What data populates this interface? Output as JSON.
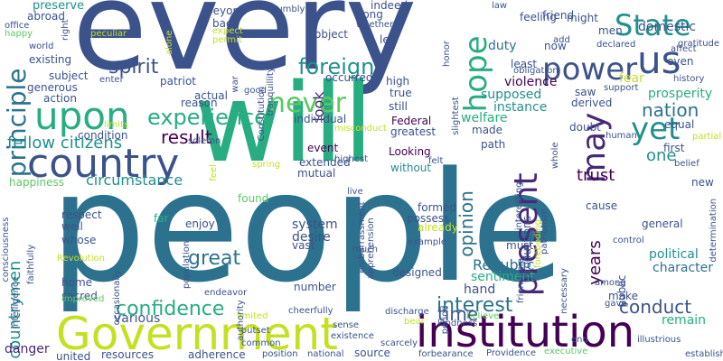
{
  "palette": {
    "c0": "#440154",
    "c1": "#3b528b",
    "c2": "#21908d",
    "c3": "#5dc963",
    "c4": "#c5e021",
    "c5": "#482878",
    "c6": "#2c728e",
    "c7": "#27ad81",
    "c8": "#fde725"
  },
  "words": [
    {
      "t": "every",
      "c": "c1"
    },
    {
      "t": "people",
      "c": "c6"
    },
    {
      "t": "will",
      "c": "c7"
    },
    {
      "t": "Government",
      "c": "c4"
    },
    {
      "t": "institution",
      "c": "c0"
    },
    {
      "t": "country",
      "c": "c1"
    },
    {
      "t": "upon",
      "c": "c7"
    },
    {
      "t": "us",
      "c": "c1"
    },
    {
      "t": "State",
      "c": "c2"
    },
    {
      "t": "power",
      "c": "c1"
    },
    {
      "t": "may",
      "c": "c5"
    },
    {
      "t": "hope",
      "c": "c7"
    },
    {
      "t": "present",
      "c": "c5"
    },
    {
      "t": "never",
      "c": "c3"
    },
    {
      "t": "principle",
      "c": "c6"
    },
    {
      "t": "experience",
      "c": "c7"
    },
    {
      "t": "foreign",
      "c": "c2"
    },
    {
      "t": "spirit",
      "c": "c1"
    },
    {
      "t": "yet",
      "c": "c2"
    },
    {
      "t": "nation",
      "c": "c6"
    },
    {
      "t": "confidence",
      "c": "c7"
    },
    {
      "t": "interest",
      "c": "c6"
    },
    {
      "t": "conduct",
      "c": "c1"
    },
    {
      "t": "great",
      "c": "c6"
    },
    {
      "t": "result",
      "c": "c0"
    },
    {
      "t": "opinion",
      "c": "c6"
    },
    {
      "t": "time",
      "c": "c1"
    },
    {
      "t": "trust",
      "c": "c0"
    },
    {
      "t": "countrymen",
      "c": "c2"
    },
    {
      "t": "fellow citizens",
      "c": "c2"
    },
    {
      "t": "one",
      "c": "c2"
    },
    {
      "t": "look",
      "c": "c5"
    },
    {
      "t": "circumstance",
      "c": "c2"
    },
    {
      "t": "years",
      "c": "c0"
    },
    {
      "t": "Republic",
      "c": "c6"
    },
    {
      "t": "political",
      "c": "c2"
    },
    {
      "t": "character",
      "c": "c6"
    },
    {
      "t": "duty",
      "c": "c6"
    },
    {
      "t": "fear",
      "c": "c4"
    },
    {
      "t": "violence",
      "c": "c0"
    },
    {
      "t": "supposed",
      "c": "c2"
    },
    {
      "t": "instance",
      "c": "c2"
    },
    {
      "t": "welfare",
      "c": "c7"
    },
    {
      "t": "prosperity",
      "c": "c7"
    },
    {
      "t": "domestic",
      "c": "c1"
    },
    {
      "t": "desire",
      "c": "c1"
    },
    {
      "t": "system",
      "c": "c1"
    },
    {
      "t": "various",
      "c": "c1"
    },
    {
      "t": "happiness",
      "c": "c3"
    },
    {
      "t": "hand",
      "c": "c1"
    },
    {
      "t": "sentiment",
      "c": "c7"
    },
    {
      "t": "remain",
      "c": "c7"
    },
    {
      "t": "danger",
      "c": "c5"
    },
    {
      "t": "resources",
      "c": "c1"
    },
    {
      "t": "adherence",
      "c": "c1"
    },
    {
      "t": "source",
      "c": "c1"
    },
    {
      "t": "united",
      "c": "c1"
    },
    {
      "t": "subject",
      "c": "c1"
    },
    {
      "t": "action",
      "c": "c1"
    },
    {
      "t": "patriot",
      "c": "c1"
    },
    {
      "t": "actual",
      "c": "c1"
    },
    {
      "t": "condition",
      "c": "c1"
    },
    {
      "t": "generous",
      "c": "c1"
    },
    {
      "t": "individual",
      "c": "c1"
    },
    {
      "t": "Federal",
      "c": "c0"
    },
    {
      "t": "greatest",
      "c": "c1"
    },
    {
      "t": "event",
      "c": "c0"
    },
    {
      "t": "extended",
      "c": "c1"
    },
    {
      "t": "mutual",
      "c": "c1"
    },
    {
      "t": "Looking",
      "c": "c0"
    },
    {
      "t": "without",
      "c": "c2"
    },
    {
      "t": "made",
      "c": "c1"
    },
    {
      "t": "path",
      "c": "c1"
    },
    {
      "t": "formed",
      "c": "c1"
    },
    {
      "t": "possess",
      "c": "c1"
    },
    {
      "t": "must",
      "c": "c1"
    },
    {
      "t": "found",
      "c": "c3"
    },
    {
      "t": "enjoy",
      "c": "c1"
    },
    {
      "t": "far",
      "c": "c7"
    },
    {
      "t": "well",
      "c": "c1"
    },
    {
      "t": "whose",
      "c": "c1"
    },
    {
      "t": "home",
      "c": "c1"
    },
    {
      "t": "sacred",
      "c": "c1"
    },
    {
      "t": "respect",
      "c": "c1"
    },
    {
      "t": "vast",
      "c": "c1"
    },
    {
      "t": "number",
      "c": "c1"
    },
    {
      "t": "designed",
      "c": "c1"
    },
    {
      "t": "already",
      "c": "c4"
    },
    {
      "t": "preserve",
      "c": "c2"
    },
    {
      "t": "abroad",
      "c": "c1"
    },
    {
      "t": "existing",
      "c": "c1"
    },
    {
      "t": "world",
      "c": "c1"
    },
    {
      "t": "beyond",
      "c": "c1"
    },
    {
      "t": "back",
      "c": "c1"
    },
    {
      "t": "reason",
      "c": "c1"
    },
    {
      "t": "good",
      "c": "c1"
    },
    {
      "t": "object",
      "c": "c1"
    },
    {
      "t": "indeed",
      "c": "c1"
    },
    {
      "t": "long",
      "c": "c1"
    },
    {
      "t": "left",
      "c": "c1"
    },
    {
      "t": "occurred",
      "c": "c1"
    },
    {
      "t": "high",
      "c": "c1"
    },
    {
      "t": "true",
      "c": "c1"
    },
    {
      "t": "still",
      "c": "c1"
    },
    {
      "t": "least",
      "c": "c1"
    },
    {
      "t": "feeling",
      "c": "c1"
    },
    {
      "t": "might",
      "c": "c1"
    },
    {
      "t": "now",
      "c": "c1"
    },
    {
      "t": "friend",
      "c": "c1"
    },
    {
      "t": "men",
      "c": "c1"
    },
    {
      "t": "even",
      "c": "c1"
    },
    {
      "t": "saw",
      "c": "c1"
    },
    {
      "t": "derived",
      "c": "c1"
    },
    {
      "t": "doubt",
      "c": "c1"
    },
    {
      "t": "first",
      "c": "c1"
    },
    {
      "t": "equal",
      "c": "c1"
    },
    {
      "t": "cause",
      "c": "c1"
    },
    {
      "t": "new",
      "c": "c1"
    },
    {
      "t": "general",
      "c": "c1"
    },
    {
      "t": "public",
      "c": "c1"
    },
    {
      "t": "make",
      "c": "c1"
    },
    {
      "t": "control",
      "c": "c1"
    },
    {
      "t": "patriotism",
      "c": "c1"
    },
    {
      "t": "necessary",
      "c": "c1"
    },
    {
      "t": "whole",
      "c": "c1"
    },
    {
      "t": "productions",
      "c": "c1"
    },
    {
      "t": "interesting",
      "c": "c1"
    },
    {
      "t": "friendship",
      "c": "c1"
    },
    {
      "t": "foreboding",
      "c": "c4"
    },
    {
      "t": "embarrassment",
      "c": "c1"
    },
    {
      "t": "apprehension",
      "c": "c1"
    },
    {
      "t": "sense",
      "c": "c1"
    },
    {
      "t": "existence",
      "c": "c1"
    },
    {
      "t": "kindness",
      "c": "c1"
    },
    {
      "t": "period",
      "c": "c1"
    },
    {
      "t": "believe",
      "c": "c3"
    },
    {
      "t": "much",
      "c": "c1"
    },
    {
      "t": "discharge",
      "c": "c1"
    },
    {
      "t": "example",
      "c": "c1"
    },
    {
      "t": "cheerfully",
      "c": "c1"
    },
    {
      "t": "common",
      "c": "c1"
    },
    {
      "t": "outset",
      "c": "c1"
    },
    {
      "t": "limited",
      "c": "c4"
    },
    {
      "t": "endeavor",
      "c": "c1"
    },
    {
      "t": "authority",
      "c": "c1"
    },
    {
      "t": "population",
      "c": "c1"
    },
    {
      "t": "occasionally",
      "c": "c1"
    },
    {
      "t": "Revolution",
      "c": "c4"
    },
    {
      "t": "intelligence",
      "c": "c1"
    },
    {
      "t": "faithfully",
      "c": "c1"
    },
    {
      "t": "consciousness",
      "c": "c1"
    },
    {
      "t": "improved",
      "c": "c3"
    },
    {
      "t": "among",
      "c": "c1"
    },
    {
      "t": "gave",
      "c": "c1"
    },
    {
      "t": "end",
      "c": "c1"
    },
    {
      "t": "illustrious",
      "c": "c1"
    },
    {
      "t": "establish",
      "c": "c1"
    },
    {
      "t": "executive",
      "c": "c3"
    },
    {
      "t": "Providence",
      "c": "c1"
    },
    {
      "t": "forbearance",
      "c": "c1"
    },
    {
      "t": "scarcely",
      "c": "c1"
    },
    {
      "t": "bear",
      "c": "c4"
    },
    {
      "t": "position",
      "c": "c1"
    },
    {
      "t": "national",
      "c": "c1"
    },
    {
      "t": "right",
      "c": "c1"
    },
    {
      "t": "office",
      "c": "c1"
    },
    {
      "t": "happy",
      "c": "c3"
    },
    {
      "t": "peculiar",
      "c": "c4"
    },
    {
      "t": "enter",
      "c": "c1"
    },
    {
      "t": "alone",
      "c": "c4"
    },
    {
      "t": "expect",
      "c": "c4"
    },
    {
      "t": "permit",
      "c": "c4"
    },
    {
      "t": "humbly",
      "c": "c1"
    },
    {
      "t": "war",
      "c": "c1"
    },
    {
      "t": "tranquillity",
      "c": "c1"
    },
    {
      "t": "Constitution",
      "c": "c1"
    },
    {
      "t": "whether",
      "c": "c1"
    },
    {
      "t": "law",
      "c": "c1"
    },
    {
      "t": "honor",
      "c": "c1"
    },
    {
      "t": "slightest",
      "c": "c1"
    },
    {
      "t": "add",
      "c": "c1"
    },
    {
      "t": "obligation",
      "c": "c1"
    },
    {
      "t": "declared",
      "c": "c1"
    },
    {
      "t": "gratitude",
      "c": "c1"
    },
    {
      "t": "affect",
      "c": "c1"
    },
    {
      "t": "history",
      "c": "c1"
    },
    {
      "t": "support",
      "c": "c1"
    },
    {
      "t": "human",
      "c": "c1"
    },
    {
      "t": "partial",
      "c": "c4"
    },
    {
      "t": "belief",
      "c": "c1"
    },
    {
      "t": "determination",
      "c": "c1"
    },
    {
      "t": "limits",
      "c": "c4"
    },
    {
      "t": "solemn",
      "c": "c1"
    },
    {
      "t": "feel",
      "c": "c4"
    },
    {
      "t": "spring",
      "c": "c4"
    },
    {
      "t": "highest",
      "c": "c1"
    },
    {
      "t": "misconduct",
      "c": "c4"
    },
    {
      "t": "felt",
      "c": "c1"
    },
    {
      "t": "live",
      "c": "c1"
    }
  ]
}
